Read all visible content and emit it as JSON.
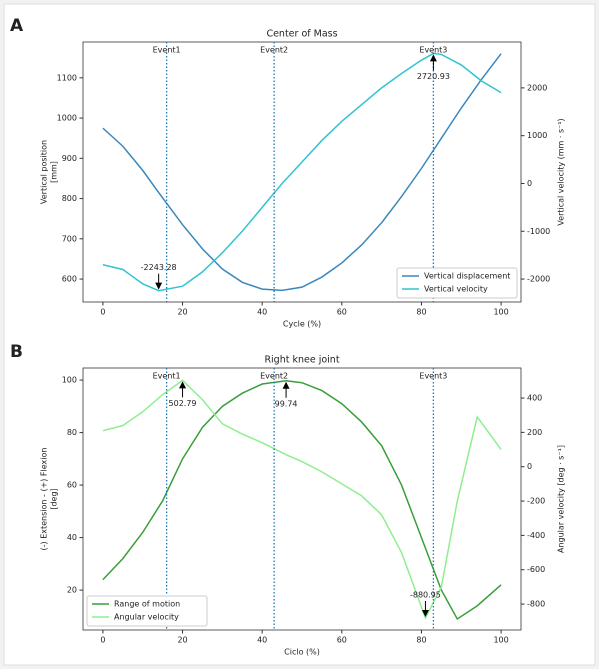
{
  "chart_data": [
    {
      "type": "line",
      "panel_label": "A",
      "title": "Center of Mass",
      "xlabel": "Cycle (%)",
      "ylabel": [
        "Vertical position",
        "[mm]"
      ],
      "y2label": "Vertical velocity (mm · s⁻¹)",
      "x": [
        0,
        5,
        10,
        14,
        20,
        25,
        30,
        35,
        40,
        45,
        50,
        55,
        60,
        65,
        70,
        75,
        80,
        83,
        85,
        90,
        95,
        100
      ],
      "series": [
        {
          "name": "Vertical displacement",
          "color": "#3a87bd",
          "axis": "y",
          "values": [
            975,
            930,
            870,
            815,
            735,
            675,
            625,
            592,
            575,
            572,
            580,
            605,
            640,
            685,
            740,
            805,
            875,
            920,
            950,
            1025,
            1095,
            1160
          ]
        },
        {
          "name": "Vertical velocity",
          "color": "#30c3d2",
          "axis": "y2",
          "values": [
            -1700,
            -1800,
            -2100,
            -2243.28,
            -2150,
            -1850,
            -1450,
            -1000,
            -500,
            0,
            450,
            900,
            1300,
            1650,
            2000,
            2300,
            2580,
            2720.93,
            2700,
            2480,
            2150,
            1900
          ]
        }
      ],
      "events": [
        {
          "label": "Event1",
          "x": 16
        },
        {
          "label": "Event2",
          "x": 43
        },
        {
          "label": "Event3",
          "x": 83
        }
      ],
      "annotations": [
        {
          "value": -2243.28,
          "x": 14,
          "axis": "y2"
        },
        {
          "value": 2720.93,
          "x": 83,
          "axis": "y2"
        }
      ],
      "xlim": [
        -5,
        105
      ],
      "ylim": [
        543,
        1189
      ],
      "y2lim": [
        -2480,
        2960
      ],
      "xticks": [
        0,
        20,
        40,
        60,
        80,
        100
      ],
      "yticks": [
        600,
        700,
        800,
        900,
        1000,
        1100
      ],
      "y2ticks": [
        -2000,
        -1000,
        0,
        1000,
        2000
      ],
      "legend": "lower right",
      "event_color": "#1f77b4"
    },
    {
      "type": "line",
      "panel_label": "B",
      "title": "Right knee joint",
      "xlabel": "Ciclo (%)",
      "ylabel": [
        "(-) Extension - (+) Flexion",
        "[deg]"
      ],
      "y2label": "Angular velocity [deg · s⁻¹]",
      "x": [
        0,
        5,
        10,
        15,
        20,
        25,
        30,
        35,
        40,
        46,
        50,
        55,
        60,
        65,
        70,
        75,
        81,
        85,
        89,
        94,
        100
      ],
      "series": [
        {
          "name": "Range of motion",
          "color": "#3a9e3a",
          "axis": "y",
          "values": [
            24,
            32,
            42,
            54,
            70,
            82,
            90,
            95,
            98.5,
            99.74,
            99,
            96,
            91,
            84,
            75,
            60,
            36,
            20,
            9,
            14,
            22
          ]
        },
        {
          "name": "Angular velocity",
          "color": "#90ee90",
          "axis": "y2",
          "values": [
            210,
            240,
            320,
            420,
            502.79,
            390,
            250,
            190,
            140,
            70,
            30,
            -30,
            -100,
            -170,
            -280,
            -500,
            -880.95,
            -700,
            -200,
            290,
            100
          ]
        }
      ],
      "events": [
        {
          "label": "Event1",
          "x": 16
        },
        {
          "label": "Event2",
          "x": 43
        },
        {
          "label": "Event3",
          "x": 83
        }
      ],
      "annotations": [
        {
          "value": 502.79,
          "x": 20,
          "axis": "y2"
        },
        {
          "value": 99.74,
          "x": 46,
          "axis": "y"
        },
        {
          "value": -880.95,
          "x": 81,
          "axis": "y2"
        }
      ],
      "xlim": [
        -5,
        105
      ],
      "ylim": [
        4.8,
        104.6
      ],
      "y2lim": [
        -951,
        575
      ],
      "xticks": [
        0,
        20,
        40,
        60,
        80,
        100
      ],
      "yticks": [
        20,
        40,
        60,
        80,
        100
      ],
      "y2ticks": [
        -800,
        -600,
        -400,
        -200,
        0,
        200,
        400
      ],
      "legend": "lower left",
      "event_color": "#1f77b4"
    }
  ]
}
